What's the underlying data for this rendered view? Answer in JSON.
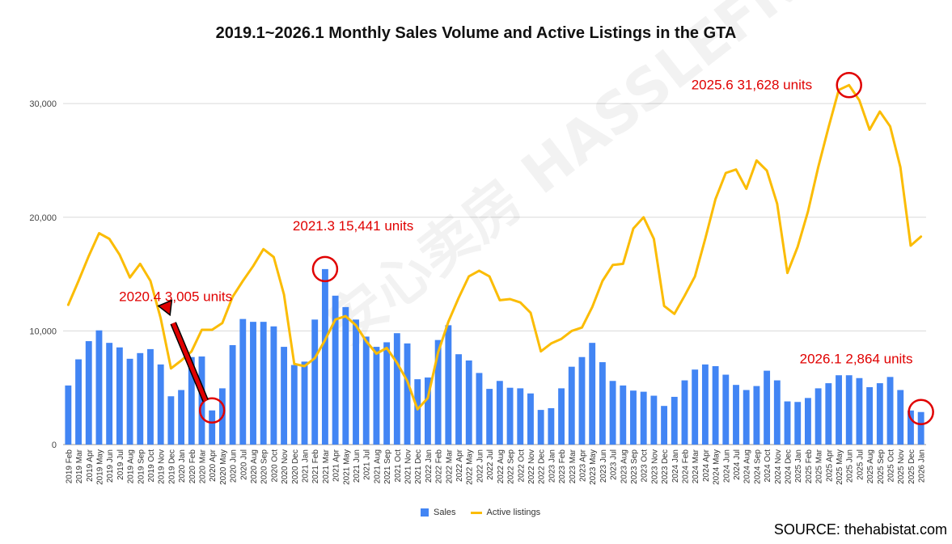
{
  "chart_data": {
    "type": "bar+line",
    "title": "2019.1~2026.1 Monthly Sales Volume and Active Listings in the GTA",
    "ylim": [
      0,
      33000
    ],
    "yticks": [
      0,
      10000,
      20000,
      30000
    ],
    "ytick_labels": [
      "0",
      "10,000",
      "20,000",
      "30,000"
    ],
    "categories": [
      "2019 Feb",
      "2019 Mar",
      "2019 Apr",
      "2019 May",
      "2019 Jun",
      "2019 Jul",
      "2019 Aug",
      "2019 Sep",
      "2019 Oct",
      "2019 Nov",
      "2019 Dec",
      "2020 Jan",
      "2020 Feb",
      "2020 Mar",
      "2020 Apr",
      "2020 May",
      "2020 Jun",
      "2020 Jul",
      "2020 Aug",
      "2020 Sep",
      "2020 Oct",
      "2020 Nov",
      "2020 Dec",
      "2021 Jan",
      "2021 Feb",
      "2021 Mar",
      "2021 Apr",
      "2021 May",
      "2021 Jun",
      "2021 Jul",
      "2021 Aug",
      "2021 Sep",
      "2021 Oct",
      "2021 Nov",
      "2021 Dec",
      "2022 Jan",
      "2022 Feb",
      "2022 Mar",
      "2022 Apr",
      "2022 May",
      "2022 Jun",
      "2022 Jul",
      "2022 Aug",
      "2022 Sep",
      "2022 Oct",
      "2022 Nov",
      "2022 Dec",
      "2023 Jan",
      "2023 Feb",
      "2023 Mar",
      "2023 Apr",
      "2023 May",
      "2023 Jun",
      "2023 Jul",
      "2023 Aug",
      "2023 Sep",
      "2023 Oct",
      "2023 Nov",
      "2023 Dec",
      "2024 Jan",
      "2024 Feb",
      "2024 Mar",
      "2024 Apr",
      "2024 May",
      "2024 Jun",
      "2024 Jul",
      "2024 Aug",
      "2024 Sep",
      "2024 Oct",
      "2024 Nov",
      "2024 Dec",
      "2025 Jan",
      "2025 Feb",
      "2025 Mar",
      "2025 Apr",
      "2025 May",
      "2025 Jun",
      "2025 Jul",
      "2025 Aug",
      "2025 Sep",
      "2025 Oct",
      "2025 Nov",
      "2025 Dec",
      "2026 Jan"
    ],
    "series": [
      {
        "name": "Sales",
        "kind": "bar",
        "color": "#4285f4",
        "values": [
          5200,
          7500,
          9100,
          10050,
          8950,
          8550,
          7550,
          8050,
          8400,
          7050,
          4250,
          4800,
          7700,
          7750,
          3005,
          4950,
          8750,
          11050,
          10800,
          10800,
          10400,
          8600,
          7000,
          7300,
          11000,
          15441,
          13100,
          12100,
          11000,
          9500,
          8600,
          9000,
          9800,
          8900,
          5750,
          5900,
          9200,
          10500,
          7950,
          7400,
          6300,
          4900,
          5600,
          5000,
          4950,
          4500,
          3050,
          3200,
          4950,
          6850,
          7700,
          8950,
          7250,
          5600,
          5200,
          4750,
          4650,
          4300,
          3400,
          4200,
          5650,
          6600,
          7050,
          6900,
          6150,
          5250,
          4800,
          5150,
          6500,
          5650,
          3800,
          3750,
          4100,
          4950,
          5400,
          6100,
          6100,
          5850,
          5050,
          5400,
          5950,
          4800,
          3000,
          2864
        ]
      },
      {
        "name": "Active listings",
        "kind": "line",
        "color": "#fbbc04",
        "values": [
          12300,
          14400,
          16600,
          18600,
          18100,
          16700,
          14700,
          15900,
          14400,
          11100,
          6700,
          7400,
          8200,
          10100,
          10100,
          10700,
          13000,
          14400,
          15700,
          17200,
          16500,
          13200,
          7100,
          6900,
          7600,
          9200,
          11000,
          11300,
          10500,
          9100,
          8000,
          8500,
          7200,
          5600,
          3100,
          4100,
          8100,
          10800,
          12900,
          14800,
          15300,
          14800,
          12700,
          12800,
          12500,
          11600,
          8200,
          8900,
          9300,
          10000,
          10300,
          12100,
          14400,
          15800,
          15900,
          19000,
          20000,
          18100,
          12200,
          11500,
          13100,
          14800,
          18100,
          21600,
          23900,
          24200,
          22500,
          25000,
          24100,
          21200,
          15100,
          17400,
          20500,
          24400,
          27900,
          31200,
          31628,
          30300,
          27700,
          29300,
          28000,
          24400,
          17500,
          18300
        ]
      }
    ],
    "annotations": [
      {
        "label": "2020.4  3,005 units",
        "category": "2020 Apr",
        "series": "Sales"
      },
      {
        "label": "2021.3  15,441 units",
        "category": "2021 Mar",
        "series": "Sales"
      },
      {
        "label": "2025.6  31,628 units",
        "category": "2025 Jun",
        "series": "Active listings"
      },
      {
        "label": "2026.1  2,864 units",
        "category": "2026 Jan",
        "series": "Sales"
      }
    ],
    "legend": [
      "Sales",
      "Active listings"
    ],
    "legend_position": "bottom",
    "grid": true
  },
  "source": "SOURCE: thehabistat.com",
  "watermark": "安心卖房 HASSLEFREE HOMESOLD",
  "annotation_color": "#e00000"
}
